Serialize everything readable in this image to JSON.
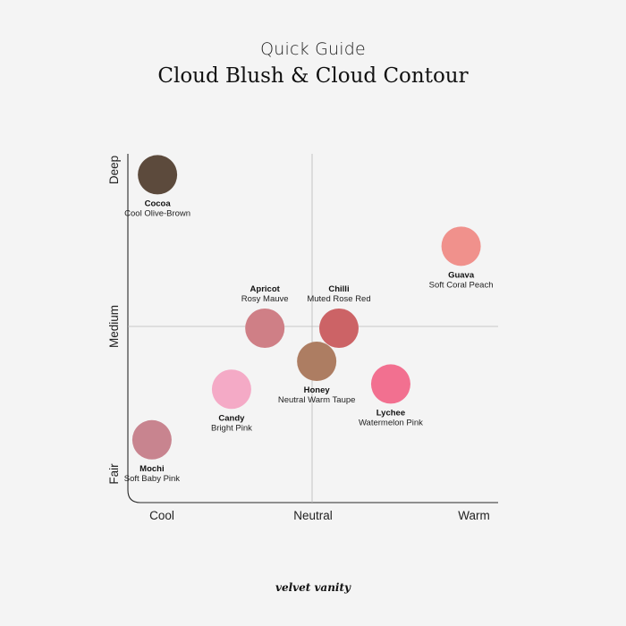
{
  "header": {
    "subtitle": "Quick Guide",
    "title": "Cloud Blush & Cloud Contour"
  },
  "brand": "velvet vanity",
  "chart_data": {
    "type": "scatter",
    "title": "Cloud Blush & Cloud Contour",
    "subtitle": "Quick Guide",
    "x_axis": {
      "categories": [
        "Cool",
        "Neutral",
        "Warm"
      ],
      "range": [
        0,
        2
      ]
    },
    "y_axis": {
      "categories": [
        "Fair",
        "Medium",
        "Deep"
      ],
      "range": [
        0,
        2
      ]
    },
    "grid": "center crosshair",
    "points": [
      {
        "name": "Cocoa",
        "description": "Cool Olive-Brown",
        "x": 0.16,
        "y": 1.88,
        "color": "#5c4a3c",
        "label_pos": "below"
      },
      {
        "name": "Guava",
        "description": "Soft Coral Peach",
        "x": 1.8,
        "y": 1.47,
        "color": "#f0918c",
        "label_pos": "below"
      },
      {
        "name": "Apricot",
        "description": "Rosy Mauve",
        "x": 0.74,
        "y": 1.0,
        "color": "#cf7f86",
        "label_pos": "above"
      },
      {
        "name": "Chilli",
        "description": "Muted Rose Red",
        "x": 1.14,
        "y": 1.0,
        "color": "#cc6366",
        "label_pos": "above"
      },
      {
        "name": "Honey",
        "description": "Neutral Warm Taupe",
        "x": 1.02,
        "y": 0.81,
        "color": "#ad7d62",
        "label_pos": "below"
      },
      {
        "name": "Candy",
        "description": "Bright Pink",
        "x": 0.56,
        "y": 0.65,
        "color": "#f4aac6",
        "label_pos": "below"
      },
      {
        "name": "Lychee",
        "description": "Watermelon Pink",
        "x": 1.42,
        "y": 0.68,
        "color": "#f27090",
        "label_pos": "below"
      },
      {
        "name": "Mochi",
        "description": "Soft Baby Pink",
        "x": 0.13,
        "y": 0.36,
        "color": "#c8848f",
        "label_pos": "below"
      }
    ]
  }
}
